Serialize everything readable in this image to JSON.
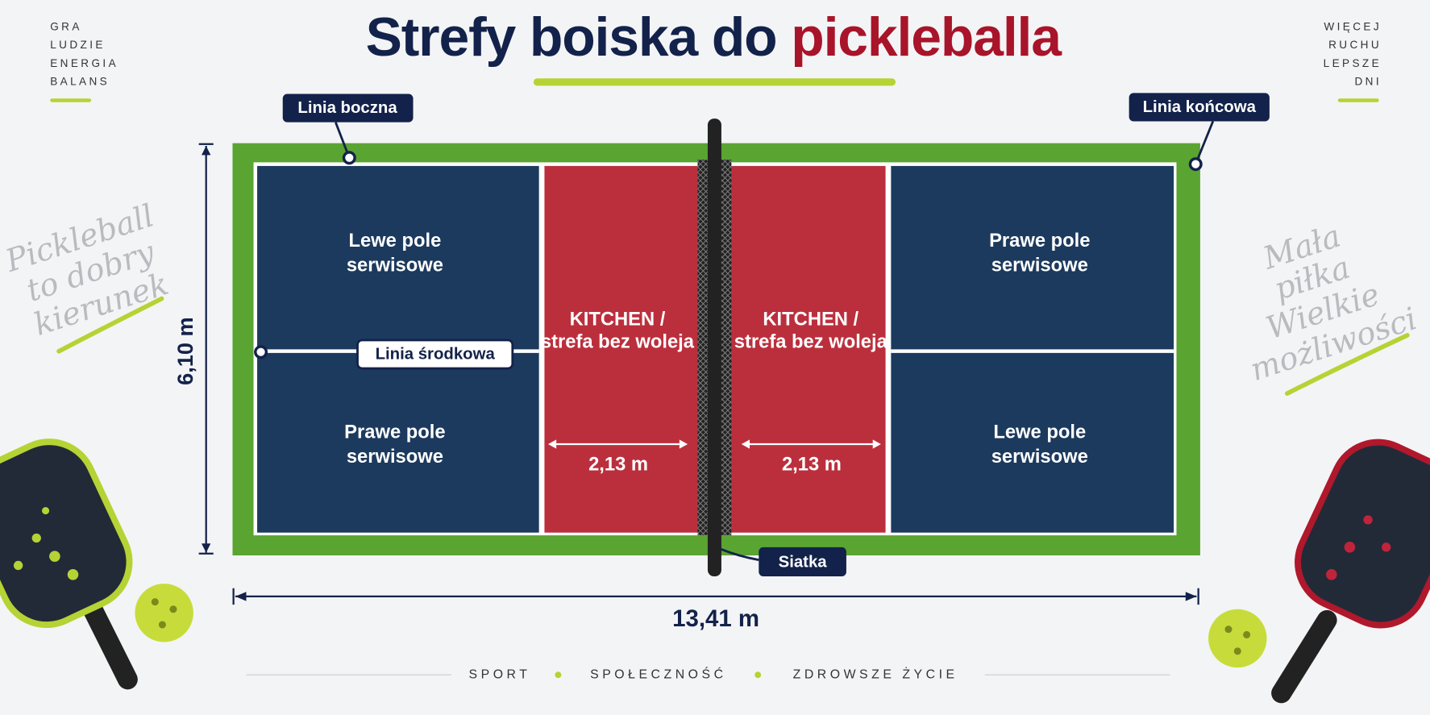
{
  "title": {
    "main": "Strefy boiska do",
    "accent": "pickleballa"
  },
  "corner_left": [
    "GRA",
    "LUDZIE",
    "ENERGIA",
    "BALANS"
  ],
  "corner_right": [
    "WIĘCEJ",
    "RUCHU",
    "LEPSZE",
    "DNI"
  ],
  "script_left": [
    "Pickleball",
    "to dobry",
    "kierunek"
  ],
  "script_right": [
    "Mała",
    "piłka",
    "Wielkie",
    "możliwości"
  ],
  "callouts": {
    "sideline": "Linia boczna",
    "baseline": "Linia końcowa",
    "centerline": "Linia środkowa",
    "net": "Siatka"
  },
  "zones": {
    "left_top": [
      "Lewe pole",
      "serwisowe"
    ],
    "left_bottom": [
      "Prawe pole",
      "serwisowe"
    ],
    "right_top": [
      "Prawe pole",
      "serwisowe"
    ],
    "right_bottom": [
      "Lewe pole",
      "serwisowe"
    ]
  },
  "kitchen": {
    "title": "KITCHEN /",
    "subtitle": "strefa bez woleja",
    "width": "2,13 m"
  },
  "dimensions": {
    "width": "6,10 m",
    "length": "13,41 m"
  },
  "footer": [
    "SPORT",
    "SPOŁECZNOŚĆ",
    "ZDROWSZE ŻYCIE"
  ]
}
